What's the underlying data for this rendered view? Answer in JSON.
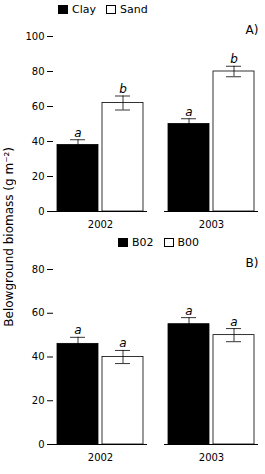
{
  "chart_data": [
    {
      "type": "bar",
      "title": "A)",
      "categories": [
        "2002",
        "2003"
      ],
      "series": [
        {
          "name": "Clay",
          "color": "black",
          "values": [
            38,
            50
          ],
          "errors": [
            3,
            3
          ],
          "annotations": [
            "a",
            "a"
          ]
        },
        {
          "name": "Sand",
          "color": "white",
          "values": [
            62,
            80
          ],
          "errors": [
            4,
            3
          ],
          "annotations": [
            "b",
            "b"
          ]
        }
      ],
      "ylim": [
        0,
        100
      ],
      "yticks": [
        0,
        20,
        40,
        60,
        80,
        100
      ],
      "legend": "upper left"
    },
    {
      "type": "bar",
      "title": "B)",
      "categories": [
        "2002",
        "2003"
      ],
      "series": [
        {
          "name": "B02",
          "color": "black",
          "values": [
            46,
            55
          ],
          "errors": [
            3,
            3
          ],
          "annotations": [
            "a",
            "a"
          ]
        },
        {
          "name": "B00",
          "color": "white",
          "values": [
            40,
            50
          ],
          "errors": [
            3,
            3
          ],
          "annotations": [
            "a",
            "a"
          ]
        }
      ],
      "ylim": [
        0,
        80
      ],
      "yticks": [
        0,
        20,
        40,
        60,
        80
      ],
      "legend": "upper center"
    }
  ],
  "ylabel": "Belowground biomass (g m⁻²)"
}
